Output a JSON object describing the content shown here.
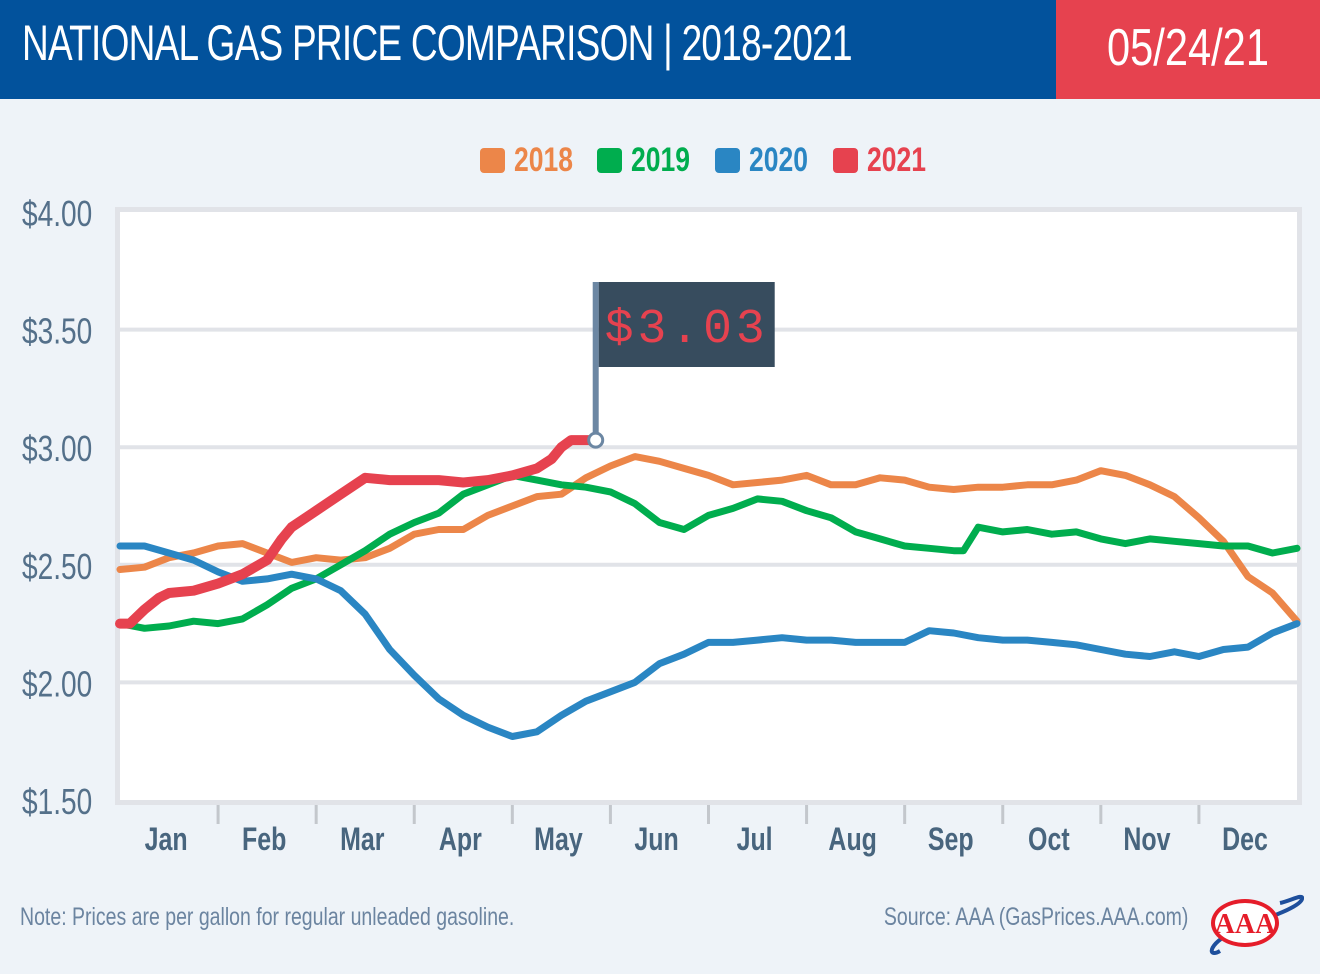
{
  "header": {
    "title": "NATIONAL GAS PRICE COMPARISON | 2018-2021",
    "date": "05/24/21"
  },
  "footer": {
    "note": "Note: Prices are per gallon for regular unleaded gasoline.",
    "source": "Source: AAA (GasPrices.AAA.com)",
    "logo": "aaa-logo"
  },
  "colors": {
    "header_blue": "#02529c",
    "header_red": "#e6424f",
    "2018": "#ec8649",
    "2019": "#00ad4e",
    "2020": "#2a86c3",
    "2021": "#e6424f",
    "flag_bg": "#374c5e"
  },
  "chart_data": {
    "type": "line",
    "title": "NATIONAL GAS PRICE COMPARISON | 2018-2021",
    "xlabel": "",
    "ylabel": "",
    "ylim": [
      1.5,
      4.0
    ],
    "xlim": [
      0,
      12
    ],
    "yticks": [
      1.5,
      2.0,
      2.5,
      3.0,
      3.5,
      4.0
    ],
    "ytick_labels": [
      "$1.50",
      "$2.00",
      "$2.50",
      "$3.00",
      "$3.50",
      "$4.00"
    ],
    "categories": [
      "Jan",
      "Feb",
      "Mar",
      "Apr",
      "May",
      "Jun",
      "Jul",
      "Aug",
      "Sep",
      "Oct",
      "Nov",
      "Dec"
    ],
    "grid": true,
    "legend": "top-center",
    "x_unit": "months since Jan 1",
    "annotation": {
      "label": "$3.03",
      "series": "2021",
      "x": 4.85,
      "y": 3.03
    },
    "series": [
      {
        "name": "2018",
        "x": [
          0,
          0.25,
          0.5,
          0.75,
          1.0,
          1.25,
          1.5,
          1.75,
          2.0,
          2.25,
          2.5,
          2.75,
          3.0,
          3.25,
          3.5,
          3.75,
          4.0,
          4.25,
          4.5,
          4.75,
          5.0,
          5.25,
          5.5,
          5.75,
          6.0,
          6.25,
          6.5,
          6.75,
          7.0,
          7.25,
          7.5,
          7.75,
          8.0,
          8.25,
          8.5,
          8.75,
          9.0,
          9.25,
          9.5,
          9.75,
          10.0,
          10.25,
          10.5,
          10.75,
          11.0,
          11.25,
          11.5,
          11.75,
          12.0
        ],
        "values": [
          2.48,
          2.49,
          2.53,
          2.55,
          2.58,
          2.59,
          2.55,
          2.51,
          2.53,
          2.52,
          2.53,
          2.57,
          2.63,
          2.65,
          2.65,
          2.71,
          2.75,
          2.79,
          2.8,
          2.87,
          2.92,
          2.96,
          2.94,
          2.91,
          2.88,
          2.84,
          2.85,
          2.86,
          2.88,
          2.84,
          2.84,
          2.87,
          2.86,
          2.83,
          2.82,
          2.83,
          2.83,
          2.84,
          2.84,
          2.86,
          2.9,
          2.88,
          2.84,
          2.79,
          2.7,
          2.6,
          2.45,
          2.38,
          2.26
        ]
      },
      {
        "name": "2019",
        "x": [
          0,
          0.25,
          0.5,
          0.75,
          1.0,
          1.25,
          1.5,
          1.75,
          2.0,
          2.25,
          2.5,
          2.75,
          3.0,
          3.25,
          3.5,
          3.75,
          4.0,
          4.25,
          4.5,
          4.75,
          5.0,
          5.25,
          5.5,
          5.75,
          6.0,
          6.25,
          6.5,
          6.75,
          7.0,
          7.25,
          7.5,
          7.75,
          8.0,
          8.25,
          8.5,
          8.6,
          8.75,
          9.0,
          9.25,
          9.5,
          9.75,
          10.0,
          10.25,
          10.5,
          10.75,
          11.0,
          11.25,
          11.5,
          11.75,
          12.0
        ],
        "values": [
          2.25,
          2.23,
          2.24,
          2.26,
          2.25,
          2.27,
          2.33,
          2.4,
          2.44,
          2.5,
          2.56,
          2.63,
          2.68,
          2.72,
          2.8,
          2.84,
          2.88,
          2.86,
          2.84,
          2.83,
          2.81,
          2.76,
          2.68,
          2.65,
          2.71,
          2.74,
          2.78,
          2.77,
          2.73,
          2.7,
          2.64,
          2.61,
          2.58,
          2.57,
          2.56,
          2.56,
          2.66,
          2.64,
          2.65,
          2.63,
          2.64,
          2.61,
          2.59,
          2.61,
          2.6,
          2.59,
          2.58,
          2.58,
          2.55,
          2.57
        ]
      },
      {
        "name": "2020",
        "x": [
          0,
          0.25,
          0.5,
          0.75,
          1.0,
          1.25,
          1.5,
          1.75,
          2.0,
          2.25,
          2.5,
          2.75,
          3.0,
          3.25,
          3.5,
          3.75,
          4.0,
          4.25,
          4.5,
          4.75,
          5.0,
          5.25,
          5.5,
          5.75,
          6.0,
          6.25,
          6.5,
          6.75,
          7.0,
          7.25,
          7.5,
          7.75,
          8.0,
          8.25,
          8.5,
          8.75,
          9.0,
          9.25,
          9.5,
          9.75,
          10.0,
          10.25,
          10.5,
          10.75,
          11.0,
          11.25,
          11.5,
          11.75,
          12.0
        ],
        "values": [
          2.58,
          2.58,
          2.55,
          2.52,
          2.47,
          2.43,
          2.44,
          2.46,
          2.44,
          2.39,
          2.29,
          2.14,
          2.03,
          1.93,
          1.86,
          1.81,
          1.77,
          1.79,
          1.86,
          1.92,
          1.96,
          2.0,
          2.08,
          2.12,
          2.17,
          2.17,
          2.18,
          2.19,
          2.18,
          2.18,
          2.17,
          2.17,
          2.17,
          2.22,
          2.21,
          2.19,
          2.18,
          2.18,
          2.17,
          2.16,
          2.14,
          2.12,
          2.11,
          2.13,
          2.11,
          2.14,
          2.15,
          2.21,
          2.25
        ]
      },
      {
        "name": "2021",
        "x": [
          0,
          0.1,
          0.25,
          0.4,
          0.5,
          0.75,
          1.0,
          1.25,
          1.5,
          1.65,
          1.75,
          2.0,
          2.25,
          2.5,
          2.75,
          3.0,
          3.25,
          3.5,
          3.75,
          4.0,
          4.25,
          4.4,
          4.5,
          4.6,
          4.75,
          4.85
        ],
        "values": [
          2.25,
          2.25,
          2.31,
          2.36,
          2.38,
          2.39,
          2.42,
          2.46,
          2.52,
          2.61,
          2.66,
          2.73,
          2.8,
          2.87,
          2.86,
          2.86,
          2.86,
          2.85,
          2.86,
          2.88,
          2.91,
          2.95,
          3.0,
          3.03,
          3.03,
          3.03
        ]
      }
    ]
  }
}
